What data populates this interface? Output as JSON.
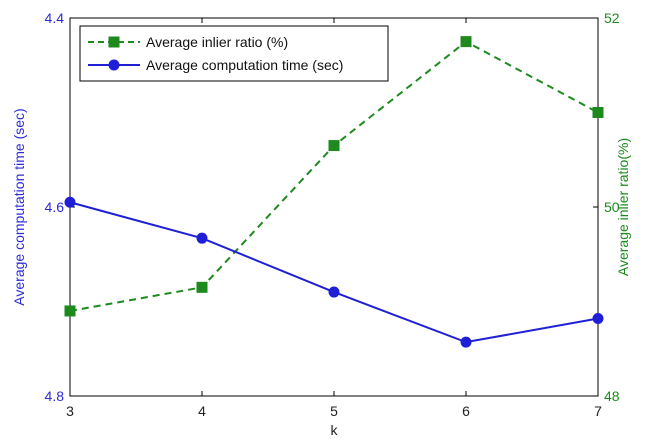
{
  "chart_data": {
    "type": "line",
    "xlabel": "k",
    "x": [
      3,
      4,
      5,
      6,
      7
    ],
    "axes": {
      "left": {
        "label": "Average computation time (sec)",
        "ylim": [
          4.4,
          4.8
        ],
        "reversed": true,
        "ticks": [
          "4.4",
          "4.6",
          "4.8"
        ],
        "color": "#2b2bd6"
      },
      "right": {
        "label": "Average inlier ratio(%)",
        "ylim": [
          48,
          52
        ],
        "ticks": [
          "48",
          "50",
          "52"
        ],
        "color": "#1e8a1e"
      }
    },
    "series": [
      {
        "name": "Average inlier ratio (%)",
        "axis": "right",
        "color": "#1e8a1e",
        "style": "dashed",
        "marker": "square",
        "values": [
          48.9,
          49.15,
          50.65,
          51.75,
          51.0
        ]
      },
      {
        "name": "Average computation time (sec)",
        "axis": "left",
        "color": "#1f1fd6",
        "style": "solid",
        "marker": "circle",
        "values": [
          4.595,
          4.633,
          4.69,
          4.743,
          4.718
        ]
      }
    ],
    "legend": "top-left",
    "grid": false
  }
}
